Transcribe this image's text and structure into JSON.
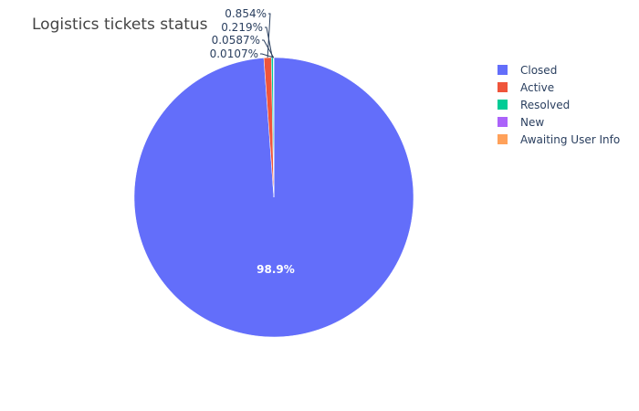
{
  "chart_data": {
    "type": "pie",
    "title": "Logistics tickets status",
    "labels": [
      "Closed",
      "Active",
      "Resolved",
      "New",
      "Awaiting User Info"
    ],
    "values": [
      98.9,
      0.854,
      0.219,
      0.0587,
      0.0107
    ],
    "text_labels": [
      "98.9%",
      "0.854%",
      "0.219%",
      "0.0587%",
      "0.0107%"
    ],
    "colors": [
      "#636efa",
      "#EF553B",
      "#00cc96",
      "#ab63fa",
      "#FFA15A"
    ],
    "legend_position": "right",
    "sort": "descending",
    "direction": "clockwise"
  }
}
